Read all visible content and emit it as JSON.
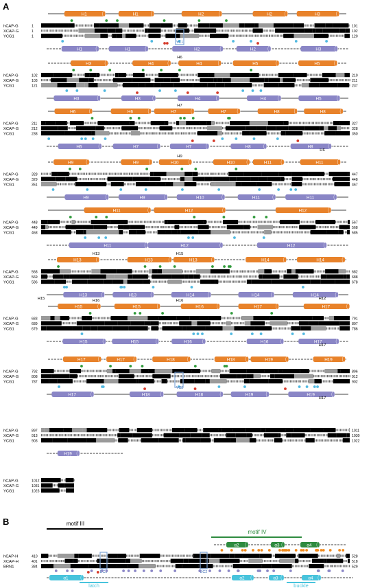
{
  "panels": {
    "A": "A",
    "B": "B"
  },
  "colors": {
    "helix_orange": "#e8822a",
    "helix_purple": "#8a86c6",
    "helix_cyan": "#48c3dc",
    "helix_green": "#2e8b3f",
    "dot_green": "#2f9a3a",
    "dot_red": "#d63a2a",
    "dot_cyan": "#4fb8e0",
    "dot_orange": "#f08a1c",
    "dot_purple": "#8a86c6",
    "conserved": "#000000",
    "similar": "#9a9a9a",
    "highlight_blue": "#7fa6d8"
  },
  "panelA": {
    "names": [
      "hCAP-G",
      "XCAP-G",
      "YCG1"
    ],
    "blocks": [
      {
        "top_helices": [
          "H1",
          "H1",
          "H2",
          "H2",
          "H3"
        ],
        "bottom_helices": [
          "H1",
          "H1",
          "H2",
          "H2",
          "H3"
        ],
        "starts": [
          "1",
          "1",
          "1"
        ],
        "ends": [
          "101",
          "102",
          "120"
        ],
        "extra_labels": [
          "YC1"
        ]
      },
      {
        "top_helices": [
          "H3",
          "H4",
          "H4",
          "H5",
          "H5"
        ],
        "bottom_helices": [
          "H3",
          "H3",
          "H4",
          "H4",
          "H5"
        ],
        "starts": [
          "102",
          "103",
          "121"
        ],
        "ends": [
          "210",
          "211",
          "237"
        ],
        "extra_labels": [
          "H6"
        ]
      },
      {
        "top_helices": [
          "H6",
          "H6",
          "H7",
          "H7",
          "H8",
          "H8"
        ],
        "bottom_helices": [
          "H6",
          "H7",
          "H7",
          "H8",
          "H8"
        ],
        "starts": [
          "211",
          "212",
          "238"
        ],
        "ends": [
          "327",
          "328",
          "350"
        ],
        "extra_labels": [
          "H7",
          "H6"
        ]
      },
      {
        "top_helices": [
          "H9",
          "H9",
          "H10",
          "H10",
          "H11",
          "H11"
        ],
        "bottom_helices": [
          "H9",
          "H9",
          "H10",
          "H11",
          "H11"
        ],
        "starts": [
          "328",
          "329",
          "351"
        ],
        "ends": [
          "447",
          "448",
          "467"
        ],
        "extra_labels": [
          "H9"
        ]
      },
      {
        "top_helices": [
          "H11",
          "H12",
          "H12"
        ],
        "bottom_helices": [
          "H11",
          "H12",
          "H12"
        ],
        "starts": [
          "448",
          "449",
          "468"
        ],
        "ends": [
          "567",
          "568",
          "585"
        ],
        "extra_labels": []
      },
      {
        "top_helices": [
          "H13",
          "H13",
          "H13",
          "H14",
          "H14"
        ],
        "bottom_helices": [
          "H13",
          "H13",
          "H14",
          "H14",
          "H14"
        ],
        "starts": [
          "568",
          "569",
          "586"
        ],
        "ends": [
          "682",
          "688",
          "678"
        ],
        "extra_labels": [
          "H15",
          "H12",
          "H13",
          "H15"
        ]
      },
      {
        "top_helices": [
          "H15",
          "H15",
          "H16",
          "H17",
          "H17"
        ],
        "bottom_helices": [
          "H15",
          "H15",
          "H16",
          "H16",
          "H17"
        ],
        "starts": [
          "683",
          "689",
          "679"
        ],
        "ends": [
          "791",
          "807",
          "786"
        ],
        "extra_labels": [
          "H16",
          "H17",
          "H16"
        ]
      },
      {
        "top_helices": [
          "H17",
          "H17",
          "H18",
          "H18",
          "H19",
          "H19"
        ],
        "bottom_helices": [
          "H17",
          "H18",
          "H18",
          "H19",
          "H19"
        ],
        "starts": [
          "792",
          "808",
          "787"
        ],
        "ends": [
          "896",
          "912",
          "902"
        ],
        "extra_labels": [
          "YC2",
          "H17"
        ]
      },
      {
        "top_helices": [],
        "bottom_helices": [
          "H19"
        ],
        "starts": [
          "897",
          "913",
          "903"
        ],
        "ends": [
          "1011",
          "1030",
          "1022"
        ],
        "extra_labels": []
      },
      {
        "top_helices": [],
        "bottom_helices": [],
        "starts": [
          "1012",
          "1031",
          "1023"
        ],
        "ends": [
          "",
          "",
          ""
        ],
        "extra_labels": []
      }
    ]
  },
  "panelB": {
    "names": [
      "hCAP-H",
      "XCAP-H",
      "BRN1"
    ],
    "starts": [
      "410",
      "401",
      "384"
    ],
    "ends": [
      "528",
      "518",
      "529"
    ],
    "motif_iii": "motif III",
    "motif_iv": "motif IV",
    "helices_top": [
      "α2",
      "α3",
      "α4"
    ],
    "helices_bottom": [
      "α1",
      "α2",
      "α3",
      "α4"
    ],
    "site_labels": [
      "BC1",
      "BC2"
    ],
    "regions": [
      "latch",
      "buckle"
    ]
  }
}
